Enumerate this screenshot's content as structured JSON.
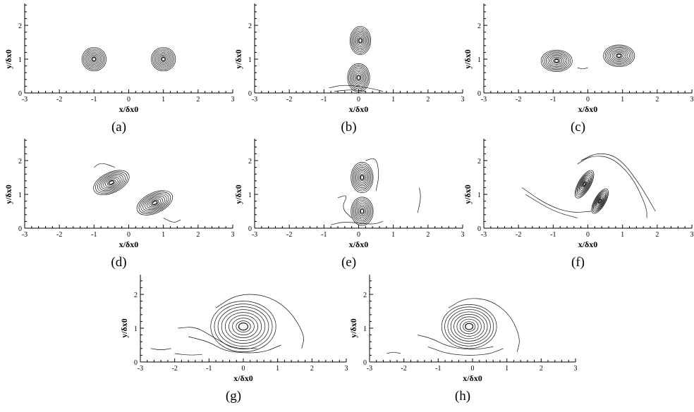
{
  "chart_data": [
    {
      "caption": "(a)",
      "type": "contour",
      "xlabel": "x/δx0",
      "ylabel": "y/δx0",
      "xlim": [
        -3,
        3
      ],
      "ylim": [
        0,
        2.6
      ],
      "x_ticks": [
        "-3",
        "-2",
        "-1",
        "0",
        "1",
        "2",
        "3"
      ],
      "y_ticks": [
        "0",
        "1",
        "2"
      ],
      "vortices": [
        {
          "x": -1.0,
          "y": 1.0,
          "rx": 0.35,
          "ry": 0.35,
          "angle": 0,
          "strength": 1
        },
        {
          "x": 1.0,
          "y": 1.0,
          "rx": 0.35,
          "ry": 0.35,
          "angle": 0,
          "strength": 1
        }
      ],
      "filaments": []
    },
    {
      "caption": "(b)",
      "type": "contour",
      "xlabel": "x/δx0",
      "ylabel": "y/δx0",
      "xlim": [
        -3,
        3
      ],
      "ylim": [
        0,
        2.6
      ],
      "x_ticks": [
        "-3",
        "-2",
        "-1",
        "0",
        "1",
        "2",
        "3"
      ],
      "y_ticks": [
        "0",
        "1",
        "2"
      ],
      "vortices": [
        {
          "x": 0.05,
          "y": 1.55,
          "rx": 0.3,
          "ry": 0.42,
          "angle": 0,
          "strength": 1
        },
        {
          "x": 0.0,
          "y": 0.45,
          "rx": 0.32,
          "ry": 0.42,
          "angle": 0,
          "strength": 1
        }
      ],
      "filaments": [
        {
          "points": [
            [
              -0.85,
              0.15
            ],
            [
              -0.4,
              0.25
            ],
            [
              0.3,
              0.15
            ],
            [
              0.7,
              0.05
            ]
          ]
        },
        {
          "points": [
            [
              -0.7,
              0.05
            ],
            [
              -0.2,
              0.1
            ],
            [
              0.2,
              0.05
            ]
          ]
        }
      ]
    },
    {
      "caption": "(c)",
      "type": "contour",
      "xlabel": "x/δx0",
      "ylabel": "y/δx0",
      "xlim": [
        -3,
        3
      ],
      "ylim": [
        0,
        2.6
      ],
      "x_ticks": [
        "-3",
        "-2",
        "-1",
        "0",
        "1",
        "2",
        "3"
      ],
      "y_ticks": [
        "0",
        "1",
        "2"
      ],
      "vortices": [
        {
          "x": -0.9,
          "y": 0.95,
          "rx": 0.45,
          "ry": 0.32,
          "angle": 0,
          "strength": 1
        },
        {
          "x": 0.9,
          "y": 1.1,
          "rx": 0.45,
          "ry": 0.32,
          "angle": 0,
          "strength": 1
        }
      ],
      "filaments": [
        {
          "points": [
            [
              -0.3,
              0.75
            ],
            [
              -0.15,
              0.7
            ],
            [
              0.0,
              0.75
            ]
          ]
        }
      ]
    },
    {
      "caption": "(d)",
      "type": "contour",
      "xlabel": "x/δx0",
      "ylabel": "y/δx0",
      "xlim": [
        -3,
        3
      ],
      "ylim": [
        0,
        2.6
      ],
      "x_ticks": [
        "-3",
        "-2",
        "-1",
        "0",
        "1",
        "2",
        "3"
      ],
      "y_ticks": [
        "0",
        "1",
        "2"
      ],
      "vortices": [
        {
          "x": -0.5,
          "y": 1.35,
          "rx": 0.55,
          "ry": 0.3,
          "angle": -25,
          "strength": 1
        },
        {
          "x": 0.75,
          "y": 0.75,
          "rx": 0.55,
          "ry": 0.3,
          "angle": -25,
          "strength": 1
        }
      ],
      "filaments": [
        {
          "points": [
            [
              -1.0,
              1.8
            ],
            [
              -0.8,
              1.95
            ],
            [
              -0.4,
              1.8
            ]
          ]
        },
        {
          "points": [
            [
              1.0,
              0.3
            ],
            [
              1.3,
              0.15
            ],
            [
              1.5,
              0.25
            ]
          ]
        }
      ]
    },
    {
      "caption": "(e)",
      "type": "contour",
      "xlabel": "x/δx0",
      "ylabel": "y/δx0",
      "xlim": [
        -3,
        3
      ],
      "ylim": [
        0,
        2.6
      ],
      "x_ticks": [
        "-3",
        "-2",
        "-1",
        "0",
        "1",
        "2",
        "3"
      ],
      "y_ticks": [
        "0",
        "1",
        "2"
      ],
      "vortices": [
        {
          "x": 0.1,
          "y": 1.5,
          "rx": 0.32,
          "ry": 0.45,
          "angle": 0,
          "strength": 1
        },
        {
          "x": 0.1,
          "y": 0.5,
          "rx": 0.32,
          "ry": 0.42,
          "angle": 0,
          "strength": 1
        }
      ],
      "filaments": [
        {
          "points": [
            [
              -0.6,
              0.9
            ],
            [
              -0.3,
              1.0
            ],
            [
              -0.5,
              0.6
            ],
            [
              -0.2,
              0.3
            ]
          ]
        },
        {
          "points": [
            [
              -0.8,
              0.1
            ],
            [
              -0.4,
              0.2
            ],
            [
              0.4,
              0.1
            ],
            [
              0.7,
              0.2
            ]
          ]
        },
        {
          "points": [
            [
              1.7,
              0.45
            ],
            [
              1.8,
              0.9
            ],
            [
              1.75,
              1.2
            ]
          ]
        },
        {
          "points": [
            [
              0.2,
              2.0
            ],
            [
              0.5,
              2.1
            ],
            [
              0.6,
              1.6
            ],
            [
              0.5,
              1.1
            ]
          ]
        }
      ]
    },
    {
      "caption": "(f)",
      "type": "contour",
      "xlabel": "x/δx0",
      "ylabel": "y/δx0",
      "xlim": [
        -3,
        3
      ],
      "ylim": [
        0,
        2.6
      ],
      "x_ticks": [
        "-3",
        "-2",
        "-1",
        "0",
        "1",
        "2",
        "3"
      ],
      "y_ticks": [
        "0",
        "1",
        "2"
      ],
      "vortices": [
        {
          "x": -0.1,
          "y": 1.3,
          "rx": 0.45,
          "ry": 0.18,
          "angle": -60,
          "strength": 1
        },
        {
          "x": 0.35,
          "y": 0.8,
          "rx": 0.4,
          "ry": 0.16,
          "angle": -60,
          "strength": 1
        }
      ],
      "filaments": [
        {
          "points": [
            [
              -1.9,
              1.2
            ],
            [
              -1.2,
              0.7
            ],
            [
              -0.5,
              0.45
            ],
            [
              0.1,
              0.5
            ]
          ]
        },
        {
          "points": [
            [
              -0.3,
              1.9
            ],
            [
              0.1,
              2.15
            ],
            [
              0.7,
              2.1
            ],
            [
              1.3,
              1.5
            ],
            [
              1.7,
              0.6
            ],
            [
              1.7,
              0.3
            ]
          ]
        },
        {
          "points": [
            [
              -0.2,
              2.0
            ],
            [
              0.3,
              2.25
            ],
            [
              0.9,
              2.1
            ],
            [
              1.5,
              1.3
            ],
            [
              1.95,
              0.5
            ]
          ]
        },
        {
          "points": [
            [
              -1.8,
              1.0
            ],
            [
              -1.0,
              0.5
            ],
            [
              -0.3,
              0.3
            ]
          ]
        }
      ]
    },
    {
      "caption": "(g)",
      "type": "contour",
      "xlabel": "x/δx0",
      "ylabel": "y/δx0",
      "xlim": [
        -3,
        3
      ],
      "ylim": [
        0,
        2.6
      ],
      "x_ticks": [
        "-3",
        "-2",
        "-1",
        "0",
        "1",
        "2",
        "3"
      ],
      "y_ticks": [
        "0",
        "1",
        "2"
      ],
      "vortices": [
        {
          "x": 0.0,
          "y": 1.05,
          "rx": 0.95,
          "ry": 0.75,
          "angle": 0,
          "strength": 1
        }
      ],
      "filaments": [
        {
          "points": [
            [
              -1.9,
              1.0
            ],
            [
              -1.4,
              1.05
            ],
            [
              -0.9,
              0.75
            ],
            [
              -0.3,
              0.4
            ],
            [
              0.4,
              0.4
            ]
          ]
        },
        {
          "points": [
            [
              -1.6,
              0.75
            ],
            [
              -1.0,
              0.6
            ],
            [
              -0.5,
              0.3
            ],
            [
              0.5,
              0.25
            ],
            [
              1.1,
              0.5
            ]
          ]
        },
        {
          "points": [
            [
              -0.8,
              1.6
            ],
            [
              -0.2,
              2.0
            ],
            [
              0.6,
              2.0
            ],
            [
              1.3,
              1.6
            ],
            [
              1.8,
              0.8
            ],
            [
              1.7,
              0.4
            ]
          ]
        },
        {
          "points": [
            [
              -2.7,
              0.4
            ],
            [
              -2.4,
              0.35
            ],
            [
              -2.1,
              0.4
            ]
          ]
        },
        {
          "points": [
            [
              -2.0,
              0.25
            ],
            [
              -1.6,
              0.2
            ],
            [
              -1.2,
              0.22
            ]
          ]
        }
      ]
    },
    {
      "caption": "(h)",
      "type": "contour",
      "xlabel": "x/δx0",
      "ylabel": "y/δx0",
      "xlim": [
        -3,
        3
      ],
      "ylim": [
        0,
        2.6
      ],
      "x_ticks": [
        "-3",
        "-2",
        "-1",
        "0",
        "1",
        "2",
        "3"
      ],
      "y_ticks": [
        "0",
        "1",
        "2"
      ],
      "vortices": [
        {
          "x": -0.1,
          "y": 1.05,
          "rx": 0.8,
          "ry": 0.65,
          "angle": 0,
          "strength": 1
        }
      ],
      "filaments": [
        {
          "points": [
            [
              -1.6,
              0.8
            ],
            [
              -1.2,
              0.7
            ],
            [
              -0.7,
              0.45
            ],
            [
              0.0,
              0.35
            ],
            [
              0.6,
              0.45
            ]
          ]
        },
        {
          "points": [
            [
              -0.7,
              1.6
            ],
            [
              -0.2,
              1.9
            ],
            [
              0.5,
              1.85
            ],
            [
              1.1,
              1.4
            ],
            [
              1.4,
              0.7
            ],
            [
              1.3,
              0.3
            ]
          ]
        },
        {
          "points": [
            [
              -1.3,
              0.45
            ],
            [
              -0.6,
              0.2
            ],
            [
              0.4,
              0.2
            ],
            [
              0.9,
              0.4
            ]
          ]
        },
        {
          "points": [
            [
              -2.5,
              0.25
            ],
            [
              -2.3,
              0.3
            ],
            [
              -2.1,
              0.25
            ]
          ]
        }
      ]
    }
  ]
}
